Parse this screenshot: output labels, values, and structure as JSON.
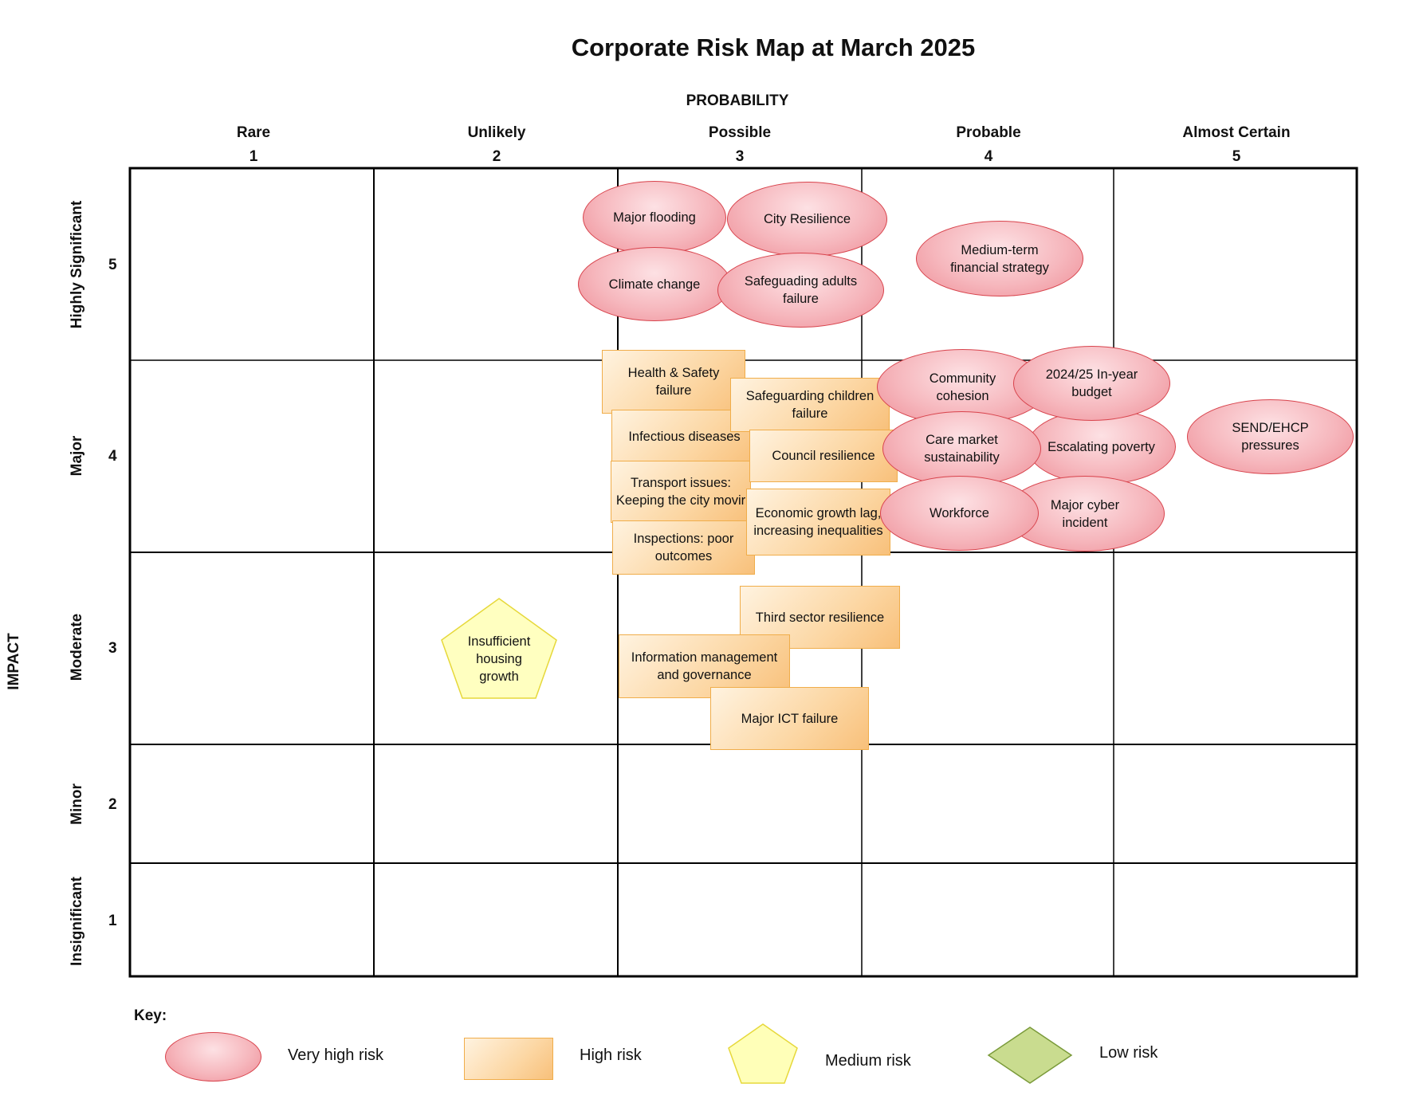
{
  "title": "Corporate Risk Map at March 2025",
  "x_axis": {
    "label": "PROBABILITY",
    "columns": [
      {
        "name": "Rare",
        "num": "1"
      },
      {
        "name": "Unlikely",
        "num": "2"
      },
      {
        "name": "Possible",
        "num": "3"
      },
      {
        "name": "Probable",
        "num": "4"
      },
      {
        "name": "Almost Certain",
        "num": "5"
      }
    ]
  },
  "y_axis": {
    "label": "IMPACT",
    "rows": [
      {
        "name": "Highly Significant",
        "num": "5"
      },
      {
        "name": "Major",
        "num": "4"
      },
      {
        "name": "Moderate",
        "num": "3"
      },
      {
        "name": "Minor",
        "num": "2"
      },
      {
        "name": "Insignificant",
        "num": "1"
      }
    ]
  },
  "risks": {
    "major_flooding": "Major flooding",
    "city_resilience": "City Resilience",
    "climate_change": "Climate change",
    "safeguarding_adults": "Safeguading adults\nfailure",
    "medium_term_financial": "Medium-term\nfinancial strategy",
    "health_safety": "Health & Safety\nfailure",
    "safeguarding_children": "Safeguarding children\nfailure",
    "infectious_diseases": "Infectious diseases",
    "council_resilience": "Council resilience",
    "transport_issues": "Transport issues:\nKeeping the city movir",
    "economic_growth": "Economic growth lag,\nincreasing inequalities",
    "inspections": "Inspections: poor\noutcomes",
    "community_cohesion": "Community\ncohesion",
    "in_year_budget": "2024/25 In-year\nbudget",
    "care_market": "Care market\nsustainability",
    "escalating_poverty": "Escalating poverty",
    "send_ehcp": "SEND/EHCP\npressures",
    "workforce": "Workforce",
    "major_cyber": "Major cyber\nincident",
    "third_sector": "Third sector resilience",
    "information_management": "Information management\nand governance",
    "major_ict": "Major ICT failure",
    "insufficient_housing": [
      "Insufficient",
      "housing",
      "growth"
    ]
  },
  "key": {
    "title": "Key:",
    "very_high": "Very high risk",
    "high": "High risk",
    "medium": "Medium risk",
    "low": "Low risk"
  },
  "colors": {
    "very_high_fill": "#f6b7bd",
    "very_high_stroke": "#d8434c",
    "high_fill": "#fcd7a4",
    "high_stroke": "#f0ad4a",
    "medium_fill": "#ffffb8",
    "medium_stroke": "#e6d83a",
    "low_fill": "#c9dc8f",
    "low_stroke": "#7a9a3a"
  }
}
